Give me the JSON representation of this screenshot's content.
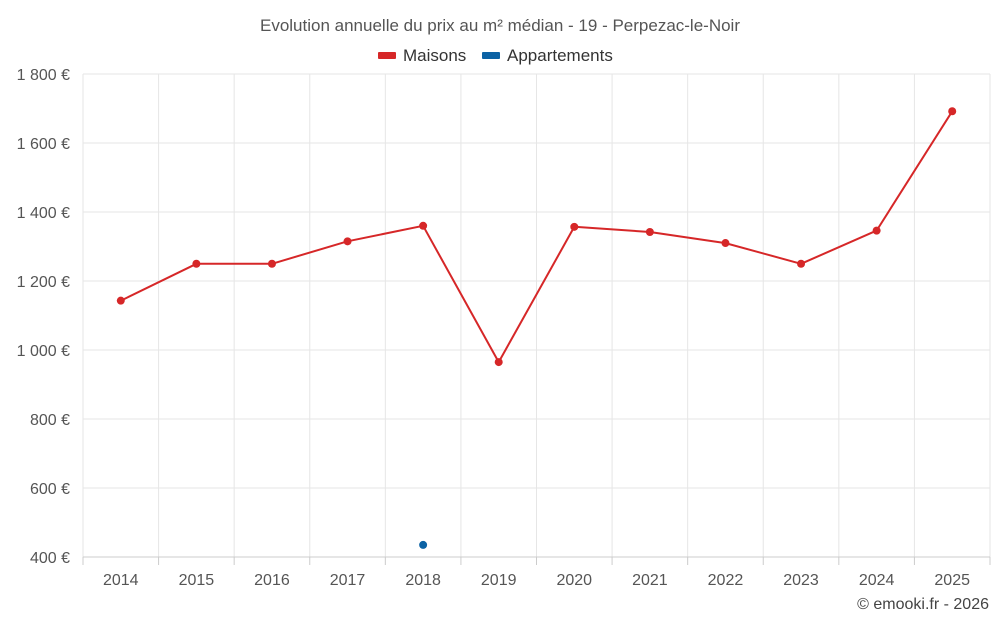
{
  "chart_data": {
    "type": "line",
    "title": "Evolution annuelle du prix au m² médian - 19 - Perpezac-le-Noir",
    "categories": [
      "2014",
      "2015",
      "2016",
      "2017",
      "2018",
      "2019",
      "2020",
      "2021",
      "2022",
      "2023",
      "2024",
      "2025"
    ],
    "series": [
      {
        "name": "Maisons",
        "color": "#d62728",
        "values": [
          1143,
          1250,
          1250,
          1315,
          1360,
          965,
          1357,
          1342,
          1310,
          1250,
          1346,
          1692
        ]
      },
      {
        "name": "Appartements",
        "color": "#0b62a4",
        "values": [
          null,
          null,
          null,
          null,
          435,
          null,
          null,
          null,
          null,
          null,
          null,
          null
        ]
      }
    ],
    "ylim": [
      400,
      1800
    ],
    "yticks": [
      400,
      600,
      800,
      1000,
      1200,
      1400,
      1600,
      1800
    ],
    "ytick_labels": [
      "400 €",
      "600 €",
      "800 €",
      "1 000 €",
      "1 200 €",
      "1 400 €",
      "1 600 €",
      "1 800 €"
    ],
    "xlabel": "",
    "ylabel": "",
    "grid": true,
    "legend": "top-center"
  },
  "credit": "© emooki.fr - 2026"
}
